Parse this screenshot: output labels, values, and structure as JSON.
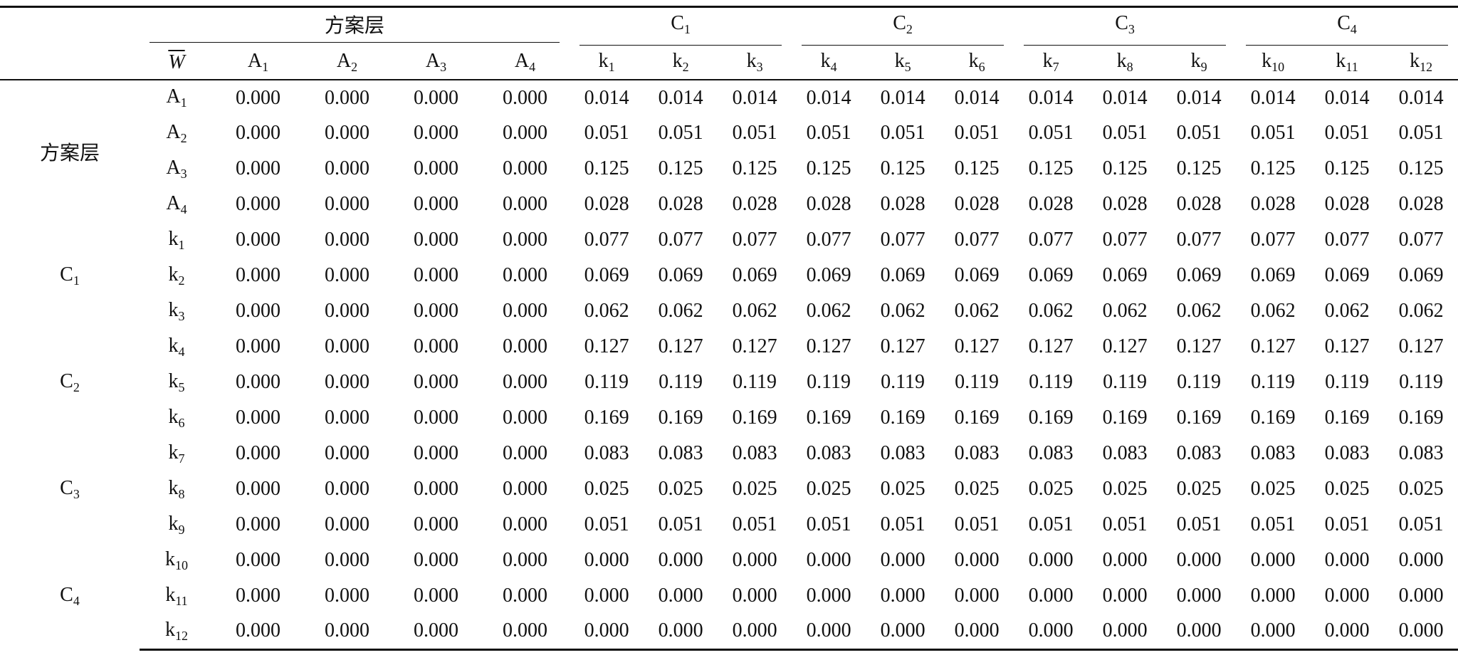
{
  "header": {
    "groups": [
      {
        "main": "方案层"
      },
      {
        "main": "C",
        "sub": "1"
      },
      {
        "main": "C",
        "sub": "2"
      },
      {
        "main": "C",
        "sub": "3"
      },
      {
        "main": "C",
        "sub": "4"
      }
    ],
    "columns": [
      {
        "main": "W"
      },
      {
        "main": "A",
        "sub": "1"
      },
      {
        "main": "A",
        "sub": "2"
      },
      {
        "main": "A",
        "sub": "3"
      },
      {
        "main": "A",
        "sub": "4"
      },
      {
        "main": "k",
        "sub": "1"
      },
      {
        "main": "k",
        "sub": "2"
      },
      {
        "main": "k",
        "sub": "3"
      },
      {
        "main": "k",
        "sub": "4"
      },
      {
        "main": "k",
        "sub": "5"
      },
      {
        "main": "k",
        "sub": "6"
      },
      {
        "main": "k",
        "sub": "7"
      },
      {
        "main": "k",
        "sub": "8"
      },
      {
        "main": "k",
        "sub": "9"
      },
      {
        "main": "k",
        "sub": "10"
      },
      {
        "main": "k",
        "sub": "11"
      },
      {
        "main": "k",
        "sub": "12"
      }
    ]
  },
  "row_groups": [
    {
      "label": {
        "main": "方案层"
      },
      "rows": [
        {
          "label": {
            "main": "A",
            "sub": "1"
          },
          "values": [
            "0.000",
            "0.000",
            "0.000",
            "0.000",
            "0.014",
            "0.014",
            "0.014",
            "0.014",
            "0.014",
            "0.014",
            "0.014",
            "0.014",
            "0.014",
            "0.014",
            "0.014",
            "0.014"
          ]
        },
        {
          "label": {
            "main": "A",
            "sub": "2"
          },
          "values": [
            "0.000",
            "0.000",
            "0.000",
            "0.000",
            "0.051",
            "0.051",
            "0.051",
            "0.051",
            "0.051",
            "0.051",
            "0.051",
            "0.051",
            "0.051",
            "0.051",
            "0.051",
            "0.051"
          ]
        },
        {
          "label": {
            "main": "A",
            "sub": "3"
          },
          "values": [
            "0.000",
            "0.000",
            "0.000",
            "0.000",
            "0.125",
            "0.125",
            "0.125",
            "0.125",
            "0.125",
            "0.125",
            "0.125",
            "0.125",
            "0.125",
            "0.125",
            "0.125",
            "0.125"
          ]
        },
        {
          "label": {
            "main": "A",
            "sub": "4"
          },
          "values": [
            "0.000",
            "0.000",
            "0.000",
            "0.000",
            "0.028",
            "0.028",
            "0.028",
            "0.028",
            "0.028",
            "0.028",
            "0.028",
            "0.028",
            "0.028",
            "0.028",
            "0.028",
            "0.028"
          ]
        }
      ]
    },
    {
      "label": {
        "main": "C",
        "sub": "1"
      },
      "rows": [
        {
          "label": {
            "main": "k",
            "sub": "1"
          },
          "values": [
            "0.000",
            "0.000",
            "0.000",
            "0.000",
            "0.077",
            "0.077",
            "0.077",
            "0.077",
            "0.077",
            "0.077",
            "0.077",
            "0.077",
            "0.077",
            "0.077",
            "0.077",
            "0.077"
          ]
        },
        {
          "label": {
            "main": "k",
            "sub": "2"
          },
          "values": [
            "0.000",
            "0.000",
            "0.000",
            "0.000",
            "0.069",
            "0.069",
            "0.069",
            "0.069",
            "0.069",
            "0.069",
            "0.069",
            "0.069",
            "0.069",
            "0.069",
            "0.069",
            "0.069"
          ]
        },
        {
          "label": {
            "main": "k",
            "sub": "3"
          },
          "values": [
            "0.000",
            "0.000",
            "0.000",
            "0.000",
            "0.062",
            "0.062",
            "0.062",
            "0.062",
            "0.062",
            "0.062",
            "0.062",
            "0.062",
            "0.062",
            "0.062",
            "0.062",
            "0.062"
          ]
        }
      ]
    },
    {
      "label": {
        "main": "C",
        "sub": "2"
      },
      "rows": [
        {
          "label": {
            "main": "k",
            "sub": "4"
          },
          "values": [
            "0.000",
            "0.000",
            "0.000",
            "0.000",
            "0.127",
            "0.127",
            "0.127",
            "0.127",
            "0.127",
            "0.127",
            "0.127",
            "0.127",
            "0.127",
            "0.127",
            "0.127",
            "0.127"
          ]
        },
        {
          "label": {
            "main": "k",
            "sub": "5"
          },
          "values": [
            "0.000",
            "0.000",
            "0.000",
            "0.000",
            "0.119",
            "0.119",
            "0.119",
            "0.119",
            "0.119",
            "0.119",
            "0.119",
            "0.119",
            "0.119",
            "0.119",
            "0.119",
            "0.119"
          ]
        },
        {
          "label": {
            "main": "k",
            "sub": "6"
          },
          "values": [
            "0.000",
            "0.000",
            "0.000",
            "0.000",
            "0.169",
            "0.169",
            "0.169",
            "0.169",
            "0.169",
            "0.169",
            "0.169",
            "0.169",
            "0.169",
            "0.169",
            "0.169",
            "0.169"
          ]
        }
      ]
    },
    {
      "label": {
        "main": "C",
        "sub": "3"
      },
      "rows": [
        {
          "label": {
            "main": "k",
            "sub": "7"
          },
          "values": [
            "0.000",
            "0.000",
            "0.000",
            "0.000",
            "0.083",
            "0.083",
            "0.083",
            "0.083",
            "0.083",
            "0.083",
            "0.083",
            "0.083",
            "0.083",
            "0.083",
            "0.083",
            "0.083"
          ]
        },
        {
          "label": {
            "main": "k",
            "sub": "8"
          },
          "values": [
            "0.000",
            "0.000",
            "0.000",
            "0.000",
            "0.025",
            "0.025",
            "0.025",
            "0.025",
            "0.025",
            "0.025",
            "0.025",
            "0.025",
            "0.025",
            "0.025",
            "0.025",
            "0.025"
          ]
        },
        {
          "label": {
            "main": "k",
            "sub": "9"
          },
          "values": [
            "0.000",
            "0.000",
            "0.000",
            "0.000",
            "0.051",
            "0.051",
            "0.051",
            "0.051",
            "0.051",
            "0.051",
            "0.051",
            "0.051",
            "0.051",
            "0.051",
            "0.051",
            "0.051"
          ]
        }
      ]
    },
    {
      "label": {
        "main": "C",
        "sub": "4"
      },
      "rows": [
        {
          "label": {
            "main": "k",
            "sub": "10"
          },
          "values": [
            "0.000",
            "0.000",
            "0.000",
            "0.000",
            "0.000",
            "0.000",
            "0.000",
            "0.000",
            "0.000",
            "0.000",
            "0.000",
            "0.000",
            "0.000",
            "0.000",
            "0.000",
            "0.000"
          ]
        },
        {
          "label": {
            "main": "k",
            "sub": "11"
          },
          "values": [
            "0.000",
            "0.000",
            "0.000",
            "0.000",
            "0.000",
            "0.000",
            "0.000",
            "0.000",
            "0.000",
            "0.000",
            "0.000",
            "0.000",
            "0.000",
            "0.000",
            "0.000",
            "0.000"
          ]
        },
        {
          "label": {
            "main": "k",
            "sub": "12"
          },
          "values": [
            "0.000",
            "0.000",
            "0.000",
            "0.000",
            "0.000",
            "0.000",
            "0.000",
            "0.000",
            "0.000",
            "0.000",
            "0.000",
            "0.000",
            "0.000",
            "0.000",
            "0.000",
            "0.000"
          ]
        }
      ]
    }
  ]
}
